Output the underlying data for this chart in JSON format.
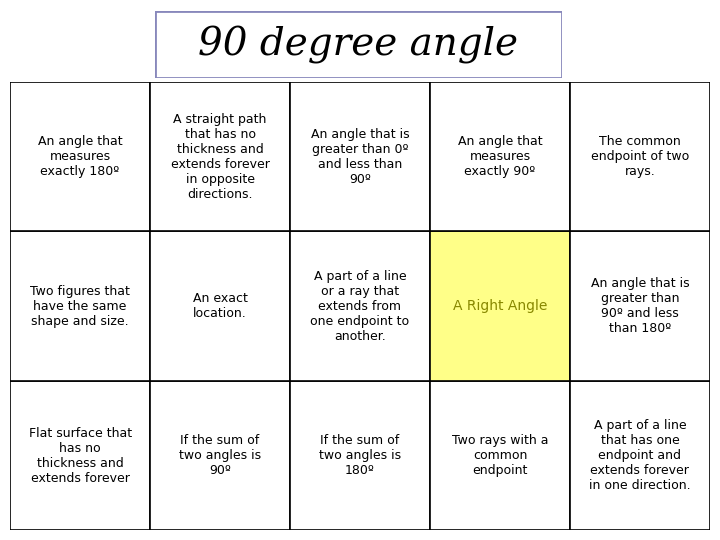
{
  "title": "90 degree angle",
  "title_fontsize": 28,
  "title_fontstyle": "italic",
  "title_box_color": "#8888bb",
  "background_color": "#ffffff",
  "grid_line_color": "#000000",
  "cells": [
    [
      "An angle that\nmeasures\nexactly 180º",
      "A straight path\nthat has no\nthickness and\nextends forever\nin opposite\ndirections.",
      "An angle that is\ngreater than 0º\nand less than\n90º",
      "An angle that\nmeasures\nexactly 90º",
      "The common\nendpoint of two\nrays."
    ],
    [
      "Two figures that\nhave the same\nshape and size.",
      "An exact\nlocation.",
      "A part of a line\nor a ray that\nextends from\none endpoint to\nanother.",
      "A Right Angle",
      "An angle that is\ngreater than\n90º and less\nthan 180º"
    ],
    [
      "Flat surface that\nhas no\nthickness and\nextends forever",
      "If the sum of\ntwo angles is\n90º",
      "If the sum of\ntwo angles is\n180º",
      "Two rays with a\ncommon\nendpoint",
      "A part of a line\nthat has one\nendpoint and\nextends forever\nin one direction."
    ]
  ],
  "cell_colors": [
    [
      "#ffffff",
      "#ffffff",
      "#ffffff",
      "#ffffff",
      "#ffffff"
    ],
    [
      "#ffffff",
      "#ffffff",
      "#ffffff",
      "#ffff88",
      "#ffffff"
    ],
    [
      "#ffffff",
      "#ffffff",
      "#ffffff",
      "#ffffff",
      "#ffffff"
    ]
  ],
  "cell_fontsize": 9,
  "highlight_cell_fontsize": 10,
  "highlight_cell_color": "#888800"
}
